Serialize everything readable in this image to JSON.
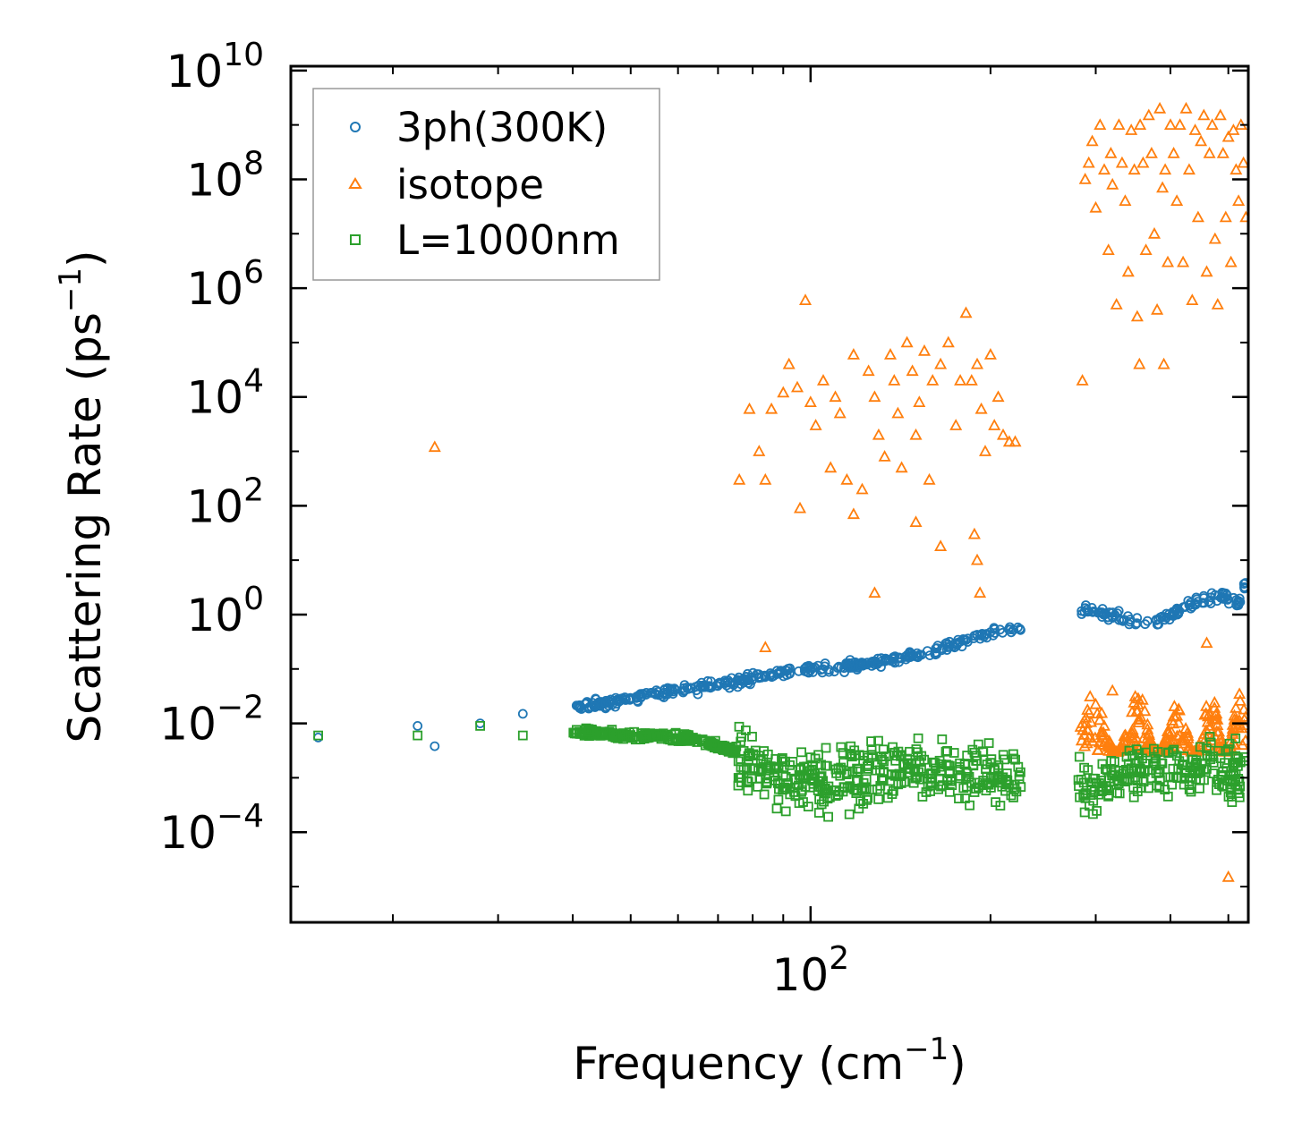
{
  "chart_data": {
    "type": "scatter",
    "xscale": "log",
    "yscale": "log",
    "xlabel": "Frequency (cm",
    "xlabel_exp": "−1",
    "xlabel_tail": ")",
    "ylabel": "Scattering Rate (ps",
    "ylabel_exp": "−1",
    "ylabel_tail": ")",
    "xlim": [
      13.5,
      540
    ],
    "ylim": [
      2.2e-06,
      12000000000.0
    ],
    "x_ticks": [
      {
        "value": 100,
        "base": "10",
        "exp": "2"
      }
    ],
    "y_ticks": [
      {
        "value": 10000000000.0,
        "base": "10",
        "exp": "10"
      },
      {
        "value": 100000000.0,
        "base": "10",
        "exp": "8"
      },
      {
        "value": 1000000.0,
        "base": "10",
        "exp": "6"
      },
      {
        "value": 10000.0,
        "base": "10",
        "exp": "4"
      },
      {
        "value": 100.0,
        "base": "10",
        "exp": "2"
      },
      {
        "value": 1,
        "base": "10",
        "exp": "0"
      },
      {
        "value": 0.01,
        "base": "10",
        "exp": "−2"
      },
      {
        "value": 0.0001,
        "base": "10",
        "exp": "−4"
      }
    ],
    "legend": {
      "location": "upper-left"
    },
    "series": [
      {
        "name": "3ph(300K)",
        "marker": "circle",
        "color": "#1f77b4",
        "trend": [
          [
            15,
            0.0055
          ],
          [
            22,
            0.009
          ],
          [
            23.5,
            0.0038
          ],
          [
            28,
            0.01
          ],
          [
            33,
            0.015
          ],
          [
            41,
            0.02
          ],
          [
            48,
            0.026
          ],
          [
            55,
            0.035
          ],
          [
            65,
            0.045
          ],
          [
            80,
            0.07
          ],
          [
            100,
            0.1
          ],
          [
            130,
            0.13
          ],
          [
            160,
            0.2
          ],
          [
            190,
            0.4
          ],
          [
            220,
            0.55
          ],
          [
            290,
            1.2
          ],
          [
            330,
            0.9
          ],
          [
            360,
            0.6
          ],
          [
            400,
            1.0
          ],
          [
            450,
            1.8
          ],
          [
            490,
            2.2
          ],
          [
            520,
            1.6
          ],
          [
            535,
            3.5
          ]
        ],
        "gap": [
          225,
          280
        ],
        "jitter_decades": 0.08,
        "samples": 520
      },
      {
        "name": "isotope",
        "marker": "triangle",
        "color": "#ff7f0e",
        "points": [
          [
            23.5,
            1200
          ],
          [
            76,
            300
          ],
          [
            79,
            6000
          ],
          [
            82,
            1000
          ],
          [
            84,
            300
          ],
          [
            86,
            6000
          ],
          [
            90,
            12000
          ],
          [
            92,
            40000
          ],
          [
            95,
            15000
          ],
          [
            98,
            600000
          ],
          [
            100,
            8000
          ],
          [
            102,
            3000
          ],
          [
            105,
            20000
          ],
          [
            108,
            500
          ],
          [
            110,
            10000
          ],
          [
            112,
            5000
          ],
          [
            115,
            300
          ],
          [
            118,
            60000
          ],
          [
            122,
            200
          ],
          [
            125,
            30000
          ],
          [
            128,
            10000
          ],
          [
            130,
            2000
          ],
          [
            133,
            800
          ],
          [
            136,
            60000
          ],
          [
            138,
            20000
          ],
          [
            140,
            5000
          ],
          [
            142,
            500
          ],
          [
            145,
            100000
          ],
          [
            148,
            30000
          ],
          [
            150,
            2000
          ],
          [
            152,
            8000
          ],
          [
            155,
            70000
          ],
          [
            158,
            300
          ],
          [
            160,
            20000
          ],
          [
            165,
            40000
          ],
          [
            170,
            100000
          ],
          [
            175,
            3000
          ],
          [
            178,
            20000
          ],
          [
            182,
            350000
          ],
          [
            186,
            20000
          ],
          [
            190,
            40000
          ],
          [
            193,
            6000
          ],
          [
            196,
            1000
          ],
          [
            200,
            60000
          ],
          [
            203,
            3000
          ],
          [
            206,
            10000
          ],
          [
            210,
            2000
          ],
          [
            215,
            1500
          ],
          [
            220,
            1500
          ],
          [
            84,
            0.25
          ],
          [
            96,
            90
          ],
          [
            118,
            70
          ],
          [
            128,
            2.5
          ],
          [
            150,
            50
          ],
          [
            165,
            18
          ],
          [
            188,
            30
          ],
          [
            190,
            10
          ],
          [
            192,
            2.5
          ],
          [
            285,
            20000
          ],
          [
            288,
            100000000.0
          ],
          [
            292,
            200000000.0
          ],
          [
            296,
            500000000.0
          ],
          [
            300,
            30000000.0
          ],
          [
            305,
            1000000000.0
          ],
          [
            310,
            150000000.0
          ],
          [
            315,
            5000000.0
          ],
          [
            318,
            300000000.0
          ],
          [
            320,
            80000000.0
          ],
          [
            325,
            500000.0
          ],
          [
            328,
            1000000000.0
          ],
          [
            332,
            200000000.0
          ],
          [
            336,
            40000000.0
          ],
          [
            340,
            2000000.0
          ],
          [
            344,
            800000000.0
          ],
          [
            348,
            150000000.0
          ],
          [
            352,
            300000.0
          ],
          [
            356,
            1000000000.0
          ],
          [
            360,
            200000000.0
          ],
          [
            364,
            5000000.0
          ],
          [
            368,
            1500000000.0
          ],
          [
            372,
            300000000.0
          ],
          [
            376,
            10000000.0
          ],
          [
            380,
            400000.0
          ],
          [
            384,
            2000000000.0
          ],
          [
            388,
            70000000.0
          ],
          [
            392,
            150000000.0
          ],
          [
            396,
            3000000.0
          ],
          [
            400,
            1000000000.0
          ],
          [
            405,
            300000000.0
          ],
          [
            410,
            40000000.0
          ],
          [
            415,
            1000000000.0
          ],
          [
            420,
            3000000.0
          ],
          [
            425,
            2000000000.0
          ],
          [
            430,
            150000000.0
          ],
          [
            435,
            600000.0
          ],
          [
            440,
            800000000.0
          ],
          [
            445,
            20000000.0
          ],
          [
            450,
            500000000.0
          ],
          [
            455,
            1500000000.0
          ],
          [
            460,
            2000000.0
          ],
          [
            465,
            300000000.0
          ],
          [
            470,
            1000000000.0
          ],
          [
            475,
            8000000.0
          ],
          [
            480,
            500000.0
          ],
          [
            485,
            1500000000.0
          ],
          [
            490,
            300000000.0
          ],
          [
            495,
            20000000.0
          ],
          [
            500,
            600000000.0
          ],
          [
            505,
            3000000.0
          ],
          [
            510,
            800000000.0
          ],
          [
            515,
            150000000.0
          ],
          [
            520,
            40000000.0
          ],
          [
            525,
            1000000000.0
          ],
          [
            530,
            200000000.0
          ],
          [
            535,
            20000000.0
          ],
          [
            355,
            40000.0
          ],
          [
            390,
            40000.0
          ],
          [
            460,
            0.3
          ],
          [
            500,
            1.5e-05
          ],
          [
            320,
            0.04
          ]
        ],
        "tail": {
          "x_range": [
            283,
            535
          ],
          "y_range": [
            0.0006,
            0.06
          ],
          "samples": 260
        }
      },
      {
        "name": "L=1000nm",
        "marker": "square",
        "color": "#2ca02c",
        "trend": [
          [
            15,
            0.006
          ],
          [
            22,
            0.006
          ],
          [
            28,
            0.009
          ],
          [
            33,
            0.006
          ],
          [
            41,
            0.007
          ],
          [
            48,
            0.006
          ],
          [
            55,
            0.006
          ],
          [
            65,
            0.005
          ],
          [
            75,
            0.003
          ],
          [
            85,
            0.001
          ],
          [
            100,
            0.0008
          ],
          [
            140,
            0.0015
          ],
          [
            180,
            0.0012
          ],
          [
            225,
            0.0009
          ],
          [
            285,
            0.0008
          ],
          [
            350,
            0.0013
          ],
          [
            450,
            0.0015
          ],
          [
            535,
            0.0012
          ]
        ],
        "gap": [
          225,
          280
        ],
        "jitter_decades": 0.45,
        "samples": 900
      }
    ]
  }
}
